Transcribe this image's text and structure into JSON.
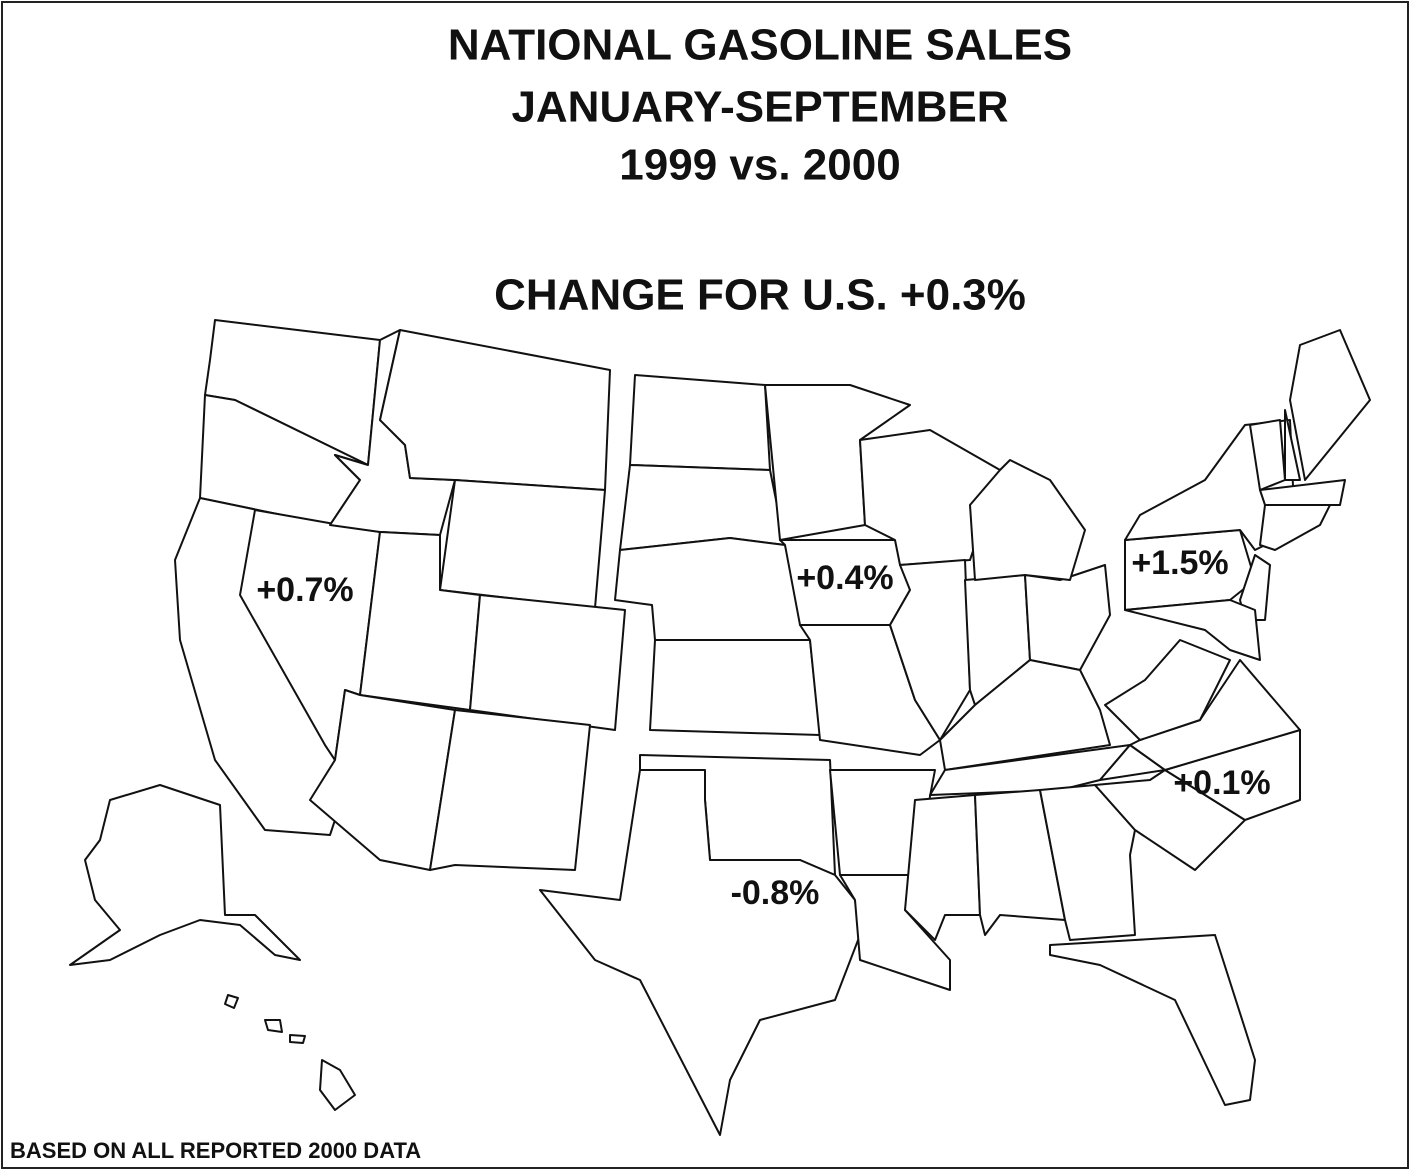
{
  "title_lines": [
    "NATIONAL GASOLINE SALES",
    "JANUARY-SEPTEMBER",
    "1999 vs. 2000"
  ],
  "subtitle": "CHANGE FOR U.S. +0.3%",
  "labels": [
    "+0.7%",
    "+0.4%",
    "+1.5%",
    "+0.1%",
    "-0.8%"
  ],
  "footer": "BASED ON ALL REPORTED 2000 DATA"
}
